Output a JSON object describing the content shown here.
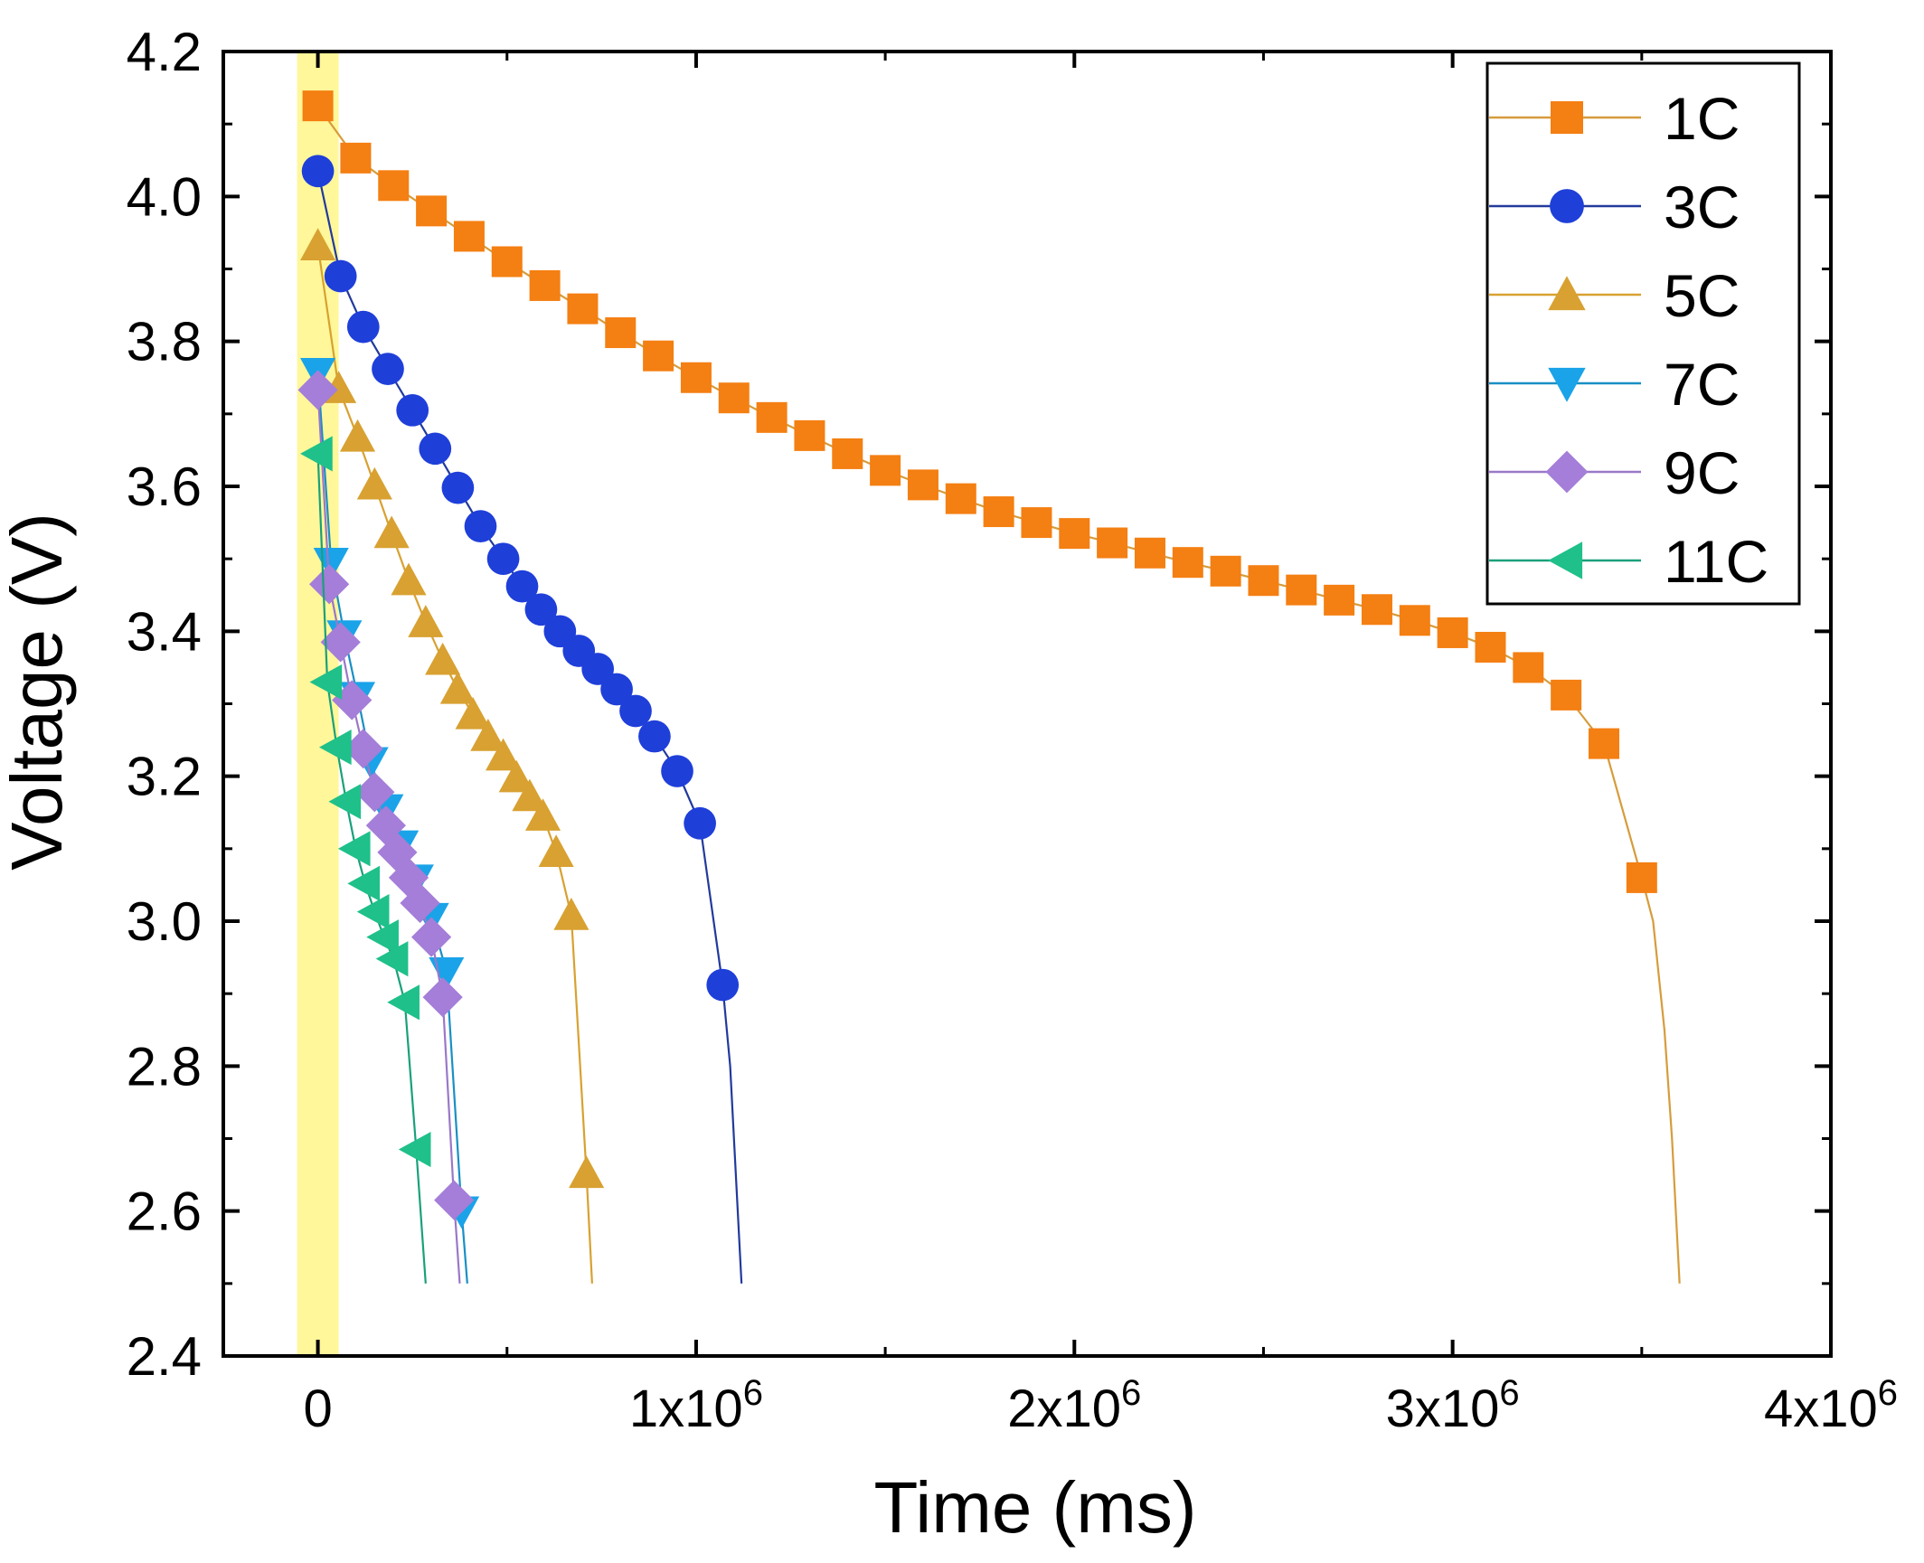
{
  "chart_data": {
    "type": "line",
    "title": "",
    "xlabel": "Time (ms)",
    "ylabel": "Voltage (V)",
    "xlim": [
      -250000,
      4000000
    ],
    "ylim": [
      2.4,
      4.2
    ],
    "x_ticks": [
      {
        "value": 0,
        "label": "0",
        "exp": ""
      },
      {
        "value": 1000000,
        "label": "1x10",
        "exp": "6"
      },
      {
        "value": 2000000,
        "label": "2x10",
        "exp": "6"
      },
      {
        "value": 3000000,
        "label": "3x10",
        "exp": "6"
      },
      {
        "value": 4000000,
        "label": "4x10",
        "exp": "6"
      }
    ],
    "y_ticks": [
      {
        "value": 2.4,
        "label": "2.4"
      },
      {
        "value": 2.6,
        "label": "2.6"
      },
      {
        "value": 2.8,
        "label": "2.8"
      },
      {
        "value": 3.0,
        "label": "3.0"
      },
      {
        "value": 3.2,
        "label": "3.2"
      },
      {
        "value": 3.4,
        "label": "3.4"
      },
      {
        "value": 3.6,
        "label": "3.6"
      },
      {
        "value": 3.8,
        "label": "3.8"
      },
      {
        "value": 4.0,
        "label": "4.0"
      },
      {
        "value": 4.2,
        "label": "4.2"
      }
    ],
    "highlight_band": {
      "x0": -55000,
      "x1": 55000,
      "color": "#fff79a"
    },
    "grid": false,
    "legend_position": "top-right",
    "series": [
      {
        "name": "1C",
        "color": "#f47f12",
        "line_color": "#d69c3c",
        "marker": "square",
        "points": [
          [
            0,
            4.125
          ],
          [
            100000,
            4.053
          ],
          [
            200000,
            4.015
          ],
          [
            300000,
            3.98
          ],
          [
            400000,
            3.945
          ],
          [
            500000,
            3.91
          ],
          [
            600000,
            3.877
          ],
          [
            700000,
            3.845
          ],
          [
            800000,
            3.812
          ],
          [
            900000,
            3.78
          ],
          [
            1000000,
            3.75
          ],
          [
            1100000,
            3.722
          ],
          [
            1200000,
            3.695
          ],
          [
            1300000,
            3.67
          ],
          [
            1400000,
            3.645
          ],
          [
            1500000,
            3.622
          ],
          [
            1600000,
            3.602
          ],
          [
            1700000,
            3.583
          ],
          [
            1800000,
            3.565
          ],
          [
            1900000,
            3.55
          ],
          [
            2000000,
            3.535
          ],
          [
            2100000,
            3.522
          ],
          [
            2200000,
            3.508
          ],
          [
            2300000,
            3.495
          ],
          [
            2400000,
            3.483
          ],
          [
            2500000,
            3.47
          ],
          [
            2600000,
            3.457
          ],
          [
            2700000,
            3.443
          ],
          [
            2800000,
            3.43
          ],
          [
            2900000,
            3.415
          ],
          [
            3000000,
            3.398
          ],
          [
            3100000,
            3.378
          ],
          [
            3200000,
            3.35
          ],
          [
            3300000,
            3.312
          ],
          [
            3400000,
            3.245
          ],
          [
            3500000,
            3.06
          ]
        ],
        "tail": [
          3530000,
          3.0,
          3560000,
          2.85,
          3580000,
          2.7,
          3600000,
          2.5
        ]
      },
      {
        "name": "3C",
        "color": "#1f3fd9",
        "line_color": "#223a9c",
        "marker": "circle",
        "points": [
          [
            0,
            4.035
          ],
          [
            60000,
            3.89
          ],
          [
            120000,
            3.82
          ],
          [
            185000,
            3.762
          ],
          [
            250000,
            3.705
          ],
          [
            310000,
            3.652
          ],
          [
            370000,
            3.598
          ],
          [
            430000,
            3.545
          ],
          [
            490000,
            3.5
          ],
          [
            540000,
            3.462
          ],
          [
            590000,
            3.43
          ],
          [
            640000,
            3.4
          ],
          [
            690000,
            3.373
          ],
          [
            740000,
            3.348
          ],
          [
            790000,
            3.32
          ],
          [
            840000,
            3.29
          ],
          [
            890000,
            3.255
          ],
          [
            950000,
            3.207
          ],
          [
            1010000,
            3.135
          ],
          [
            1070000,
            2.912
          ]
        ],
        "tail": [
          1090000,
          2.8,
          1105000,
          2.65,
          1120000,
          2.5
        ]
      },
      {
        "name": "5C",
        "color": "#d8a131",
        "line_color": "#d8a131",
        "marker": "triangle-up",
        "points": [
          [
            0,
            3.932
          ],
          [
            55000,
            3.735
          ],
          [
            105000,
            3.668
          ],
          [
            150000,
            3.602
          ],
          [
            195000,
            3.535
          ],
          [
            240000,
            3.47
          ],
          [
            285000,
            3.412
          ],
          [
            330000,
            3.36
          ],
          [
            370000,
            3.32
          ],
          [
            410000,
            3.285
          ],
          [
            450000,
            3.255
          ],
          [
            490000,
            3.228
          ],
          [
            525000,
            3.198
          ],
          [
            560000,
            3.172
          ],
          [
            595000,
            3.145
          ],
          [
            630000,
            3.095
          ],
          [
            670000,
            3.008
          ],
          [
            710000,
            2.652
          ]
        ],
        "tail": [
          725000,
          2.5
        ]
      },
      {
        "name": "7C",
        "color": "#1aa3e8",
        "line_color": "#1a8fc4",
        "marker": "triangle-down",
        "points": [
          [
            0,
            3.757
          ],
          [
            35000,
            3.495
          ],
          [
            70000,
            3.395
          ],
          [
            105000,
            3.31
          ],
          [
            140000,
            3.22
          ],
          [
            180000,
            3.155
          ],
          [
            220000,
            3.105
          ],
          [
            260000,
            3.058
          ],
          [
            300000,
            3.005
          ],
          [
            340000,
            2.93
          ],
          [
            380000,
            2.6
          ]
        ],
        "tail": [
          395000,
          2.5
        ]
      },
      {
        "name": "9C",
        "color": "#a47ed8",
        "line_color": "#9a78c8",
        "marker": "diamond",
        "points": [
          [
            0,
            3.733
          ],
          [
            30000,
            3.465
          ],
          [
            60000,
            3.385
          ],
          [
            90000,
            3.305
          ],
          [
            120000,
            3.238
          ],
          [
            150000,
            3.178
          ],
          [
            180000,
            3.132
          ],
          [
            210000,
            3.095
          ],
          [
            240000,
            3.06
          ],
          [
            270000,
            3.025
          ],
          [
            300000,
            2.978
          ],
          [
            330000,
            2.895
          ],
          [
            360000,
            2.615
          ]
        ],
        "tail": [
          375000,
          2.5
        ]
      },
      {
        "name": "11C",
        "color": "#1fc08a",
        "line_color": "#1aa07a",
        "marker": "triangle-left",
        "points": [
          [
            0,
            3.645
          ],
          [
            25000,
            3.33
          ],
          [
            50000,
            3.24
          ],
          [
            75000,
            3.165
          ],
          [
            100000,
            3.1
          ],
          [
            125000,
            3.052
          ],
          [
            150000,
            3.013
          ],
          [
            175000,
            2.978
          ],
          [
            200000,
            2.948
          ],
          [
            230000,
            2.888
          ],
          [
            260000,
            2.685
          ]
        ],
        "tail": [
          285000,
          2.5
        ]
      }
    ]
  }
}
